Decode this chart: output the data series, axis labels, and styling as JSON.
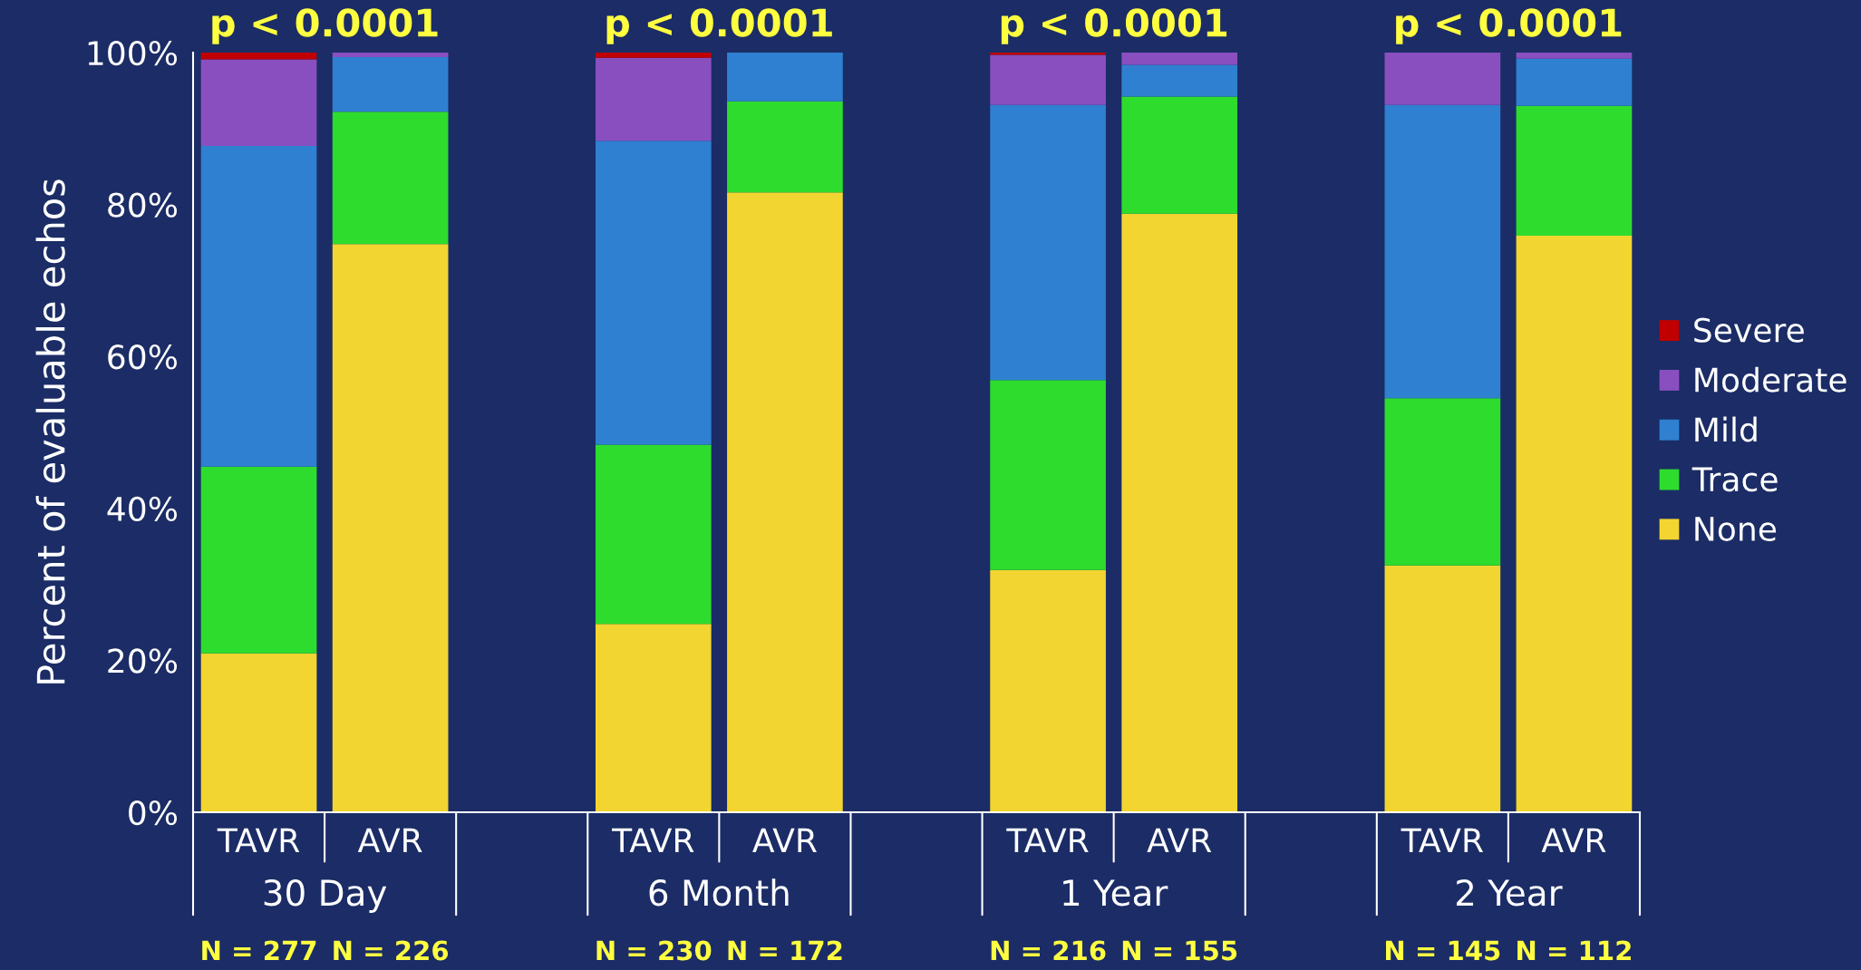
{
  "chart_data": {
    "type": "bar",
    "stacked": true,
    "ylabel": "Percent of evaluable echos",
    "categories": [
      "TAVR",
      "AVR",
      null,
      "TAVR",
      "AVR",
      null,
      "TAVR",
      "AVR",
      null,
      "TAVR",
      "AVR"
    ],
    "series": [
      {
        "name": "None",
        "color": "#f2d530",
        "values": [
          20.9,
          74.8,
          null,
          24.8,
          81.6,
          null,
          31.9,
          78.8,
          null,
          32.5,
          75.9
        ]
      },
      {
        "name": "Trace",
        "color": "#2edc2e",
        "values": [
          24.6,
          17.4,
          null,
          23.6,
          12.0,
          null,
          25.0,
          15.4,
          null,
          22.0,
          17.1
        ]
      },
      {
        "name": "Mild",
        "color": "#2f80d0",
        "values": [
          42.2,
          7.2,
          null,
          40.0,
          6.4,
          null,
          36.2,
          4.2,
          null,
          38.6,
          6.2
        ]
      },
      {
        "name": "Moderate",
        "color": "#8a4fbf",
        "values": [
          11.4,
          0.6,
          null,
          10.9,
          0.0,
          null,
          6.6,
          1.6,
          null,
          6.9,
          0.8
        ]
      },
      {
        "name": "Severe",
        "color": "#c00000",
        "values": [
          0.9,
          0.0,
          null,
          0.7,
          0.0,
          null,
          0.3,
          0.0,
          null,
          0.0,
          0.0
        ]
      }
    ],
    "ylim": [
      0,
      100
    ],
    "yticks": [
      {
        "value": 0,
        "label": "0%"
      },
      {
        "value": 20,
        "label": "20%"
      },
      {
        "value": 40,
        "label": "40%"
      },
      {
        "value": 60,
        "label": "60%"
      },
      {
        "value": 80,
        "label": "80%"
      },
      {
        "value": 100,
        "label": "100%"
      }
    ],
    "annotations": [
      "30 Day",
      "6 Month",
      "1 Year",
      "2 Year",
      "p < 0.0001",
      "p < 0.0001",
      "p < 0.0001",
      "p < 0.0001",
      "N = 277",
      "N = 226",
      "N = 230",
      "N = 172",
      "N = 216",
      "N = 155",
      "N = 145",
      "N = 112"
    ],
    "legend": "right",
    "grid": false
  }
}
